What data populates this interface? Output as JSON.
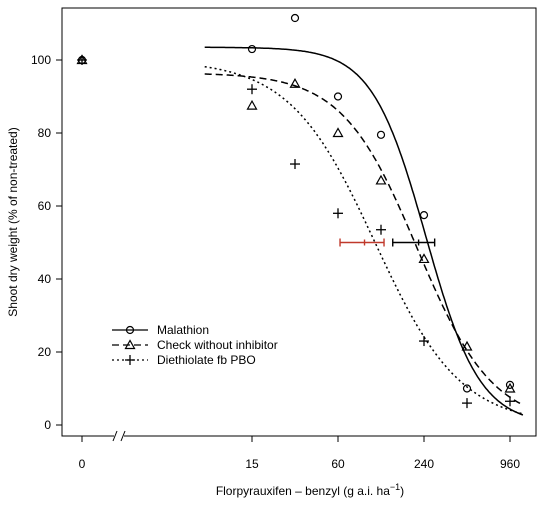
{
  "chart_data": {
    "type": "scatter",
    "xlabel": "Florpyrauxifen – benzyl (g a.i. ha",
    "xlabel_sup": "−1",
    "xlabel_close": ")",
    "ylabel": "Shoot dry weight (% of non-treated)",
    "x_scale": "log2 with axis break",
    "x_ticks": [
      "0",
      "15",
      "60",
      "240",
      "960"
    ],
    "y_ticks": [
      "0",
      "20",
      "40",
      "60",
      "80",
      "100"
    ],
    "ylim": [
      -2,
      117
    ],
    "legend_position": "bottom-left",
    "series": [
      {
        "name": "Malathion",
        "marker": "circle",
        "line": "solid",
        "color": "#000000",
        "points": [
          {
            "x": 0,
            "y": 100
          },
          {
            "x": 15,
            "y": 103
          },
          {
            "x": 30,
            "y": 111.5
          },
          {
            "x": 60,
            "y": 90
          },
          {
            "x": 120,
            "y": 79.5
          },
          {
            "x": 240,
            "y": 57.5
          },
          {
            "x": 480,
            "y": 10
          },
          {
            "x": 960,
            "y": 11
          }
        ],
        "curve": {
          "max": 103.5,
          "min": 0,
          "x50": 247,
          "slope": 2.3
        },
        "ci_x": {
          "low": 145,
          "center": 220,
          "high": 285,
          "y": 50,
          "color": "#000000"
        }
      },
      {
        "name": "Check without inhibitor",
        "marker": "triangle",
        "line": "dashed",
        "color": "#000000",
        "points": [
          {
            "x": 0,
            "y": 100
          },
          {
            "x": 15,
            "y": 87.5
          },
          {
            "x": 30,
            "y": 93.5
          },
          {
            "x": 60,
            "y": 80
          },
          {
            "x": 120,
            "y": 67
          },
          {
            "x": 240,
            "y": 45.5
          },
          {
            "x": 480,
            "y": 21.5
          },
          {
            "x": 960,
            "y": 10
          }
        ],
        "curve": {
          "max": 96.5,
          "min": 0,
          "x50": 216,
          "slope": 1.65
        }
      },
      {
        "name": "Diethiolate fb PBO",
        "marker": "plus",
        "line": "dotted",
        "color": "#000000",
        "points": [
          {
            "x": 0,
            "y": 100
          },
          {
            "x": 15,
            "y": 92
          },
          {
            "x": 30,
            "y": 71.5
          },
          {
            "x": 60,
            "y": 58
          },
          {
            "x": 120,
            "y": 53.5
          },
          {
            "x": 240,
            "y": 23
          },
          {
            "x": 480,
            "y": 6
          },
          {
            "x": 960,
            "y": 6.5
          }
        ],
        "curve": {
          "max": 100,
          "min": 0,
          "x50": 109,
          "slope": 1.45
        },
        "ci_x": {
          "low": 62,
          "center": 92,
          "high": 126,
          "y": 50,
          "color": "#c0392b"
        }
      }
    ]
  }
}
